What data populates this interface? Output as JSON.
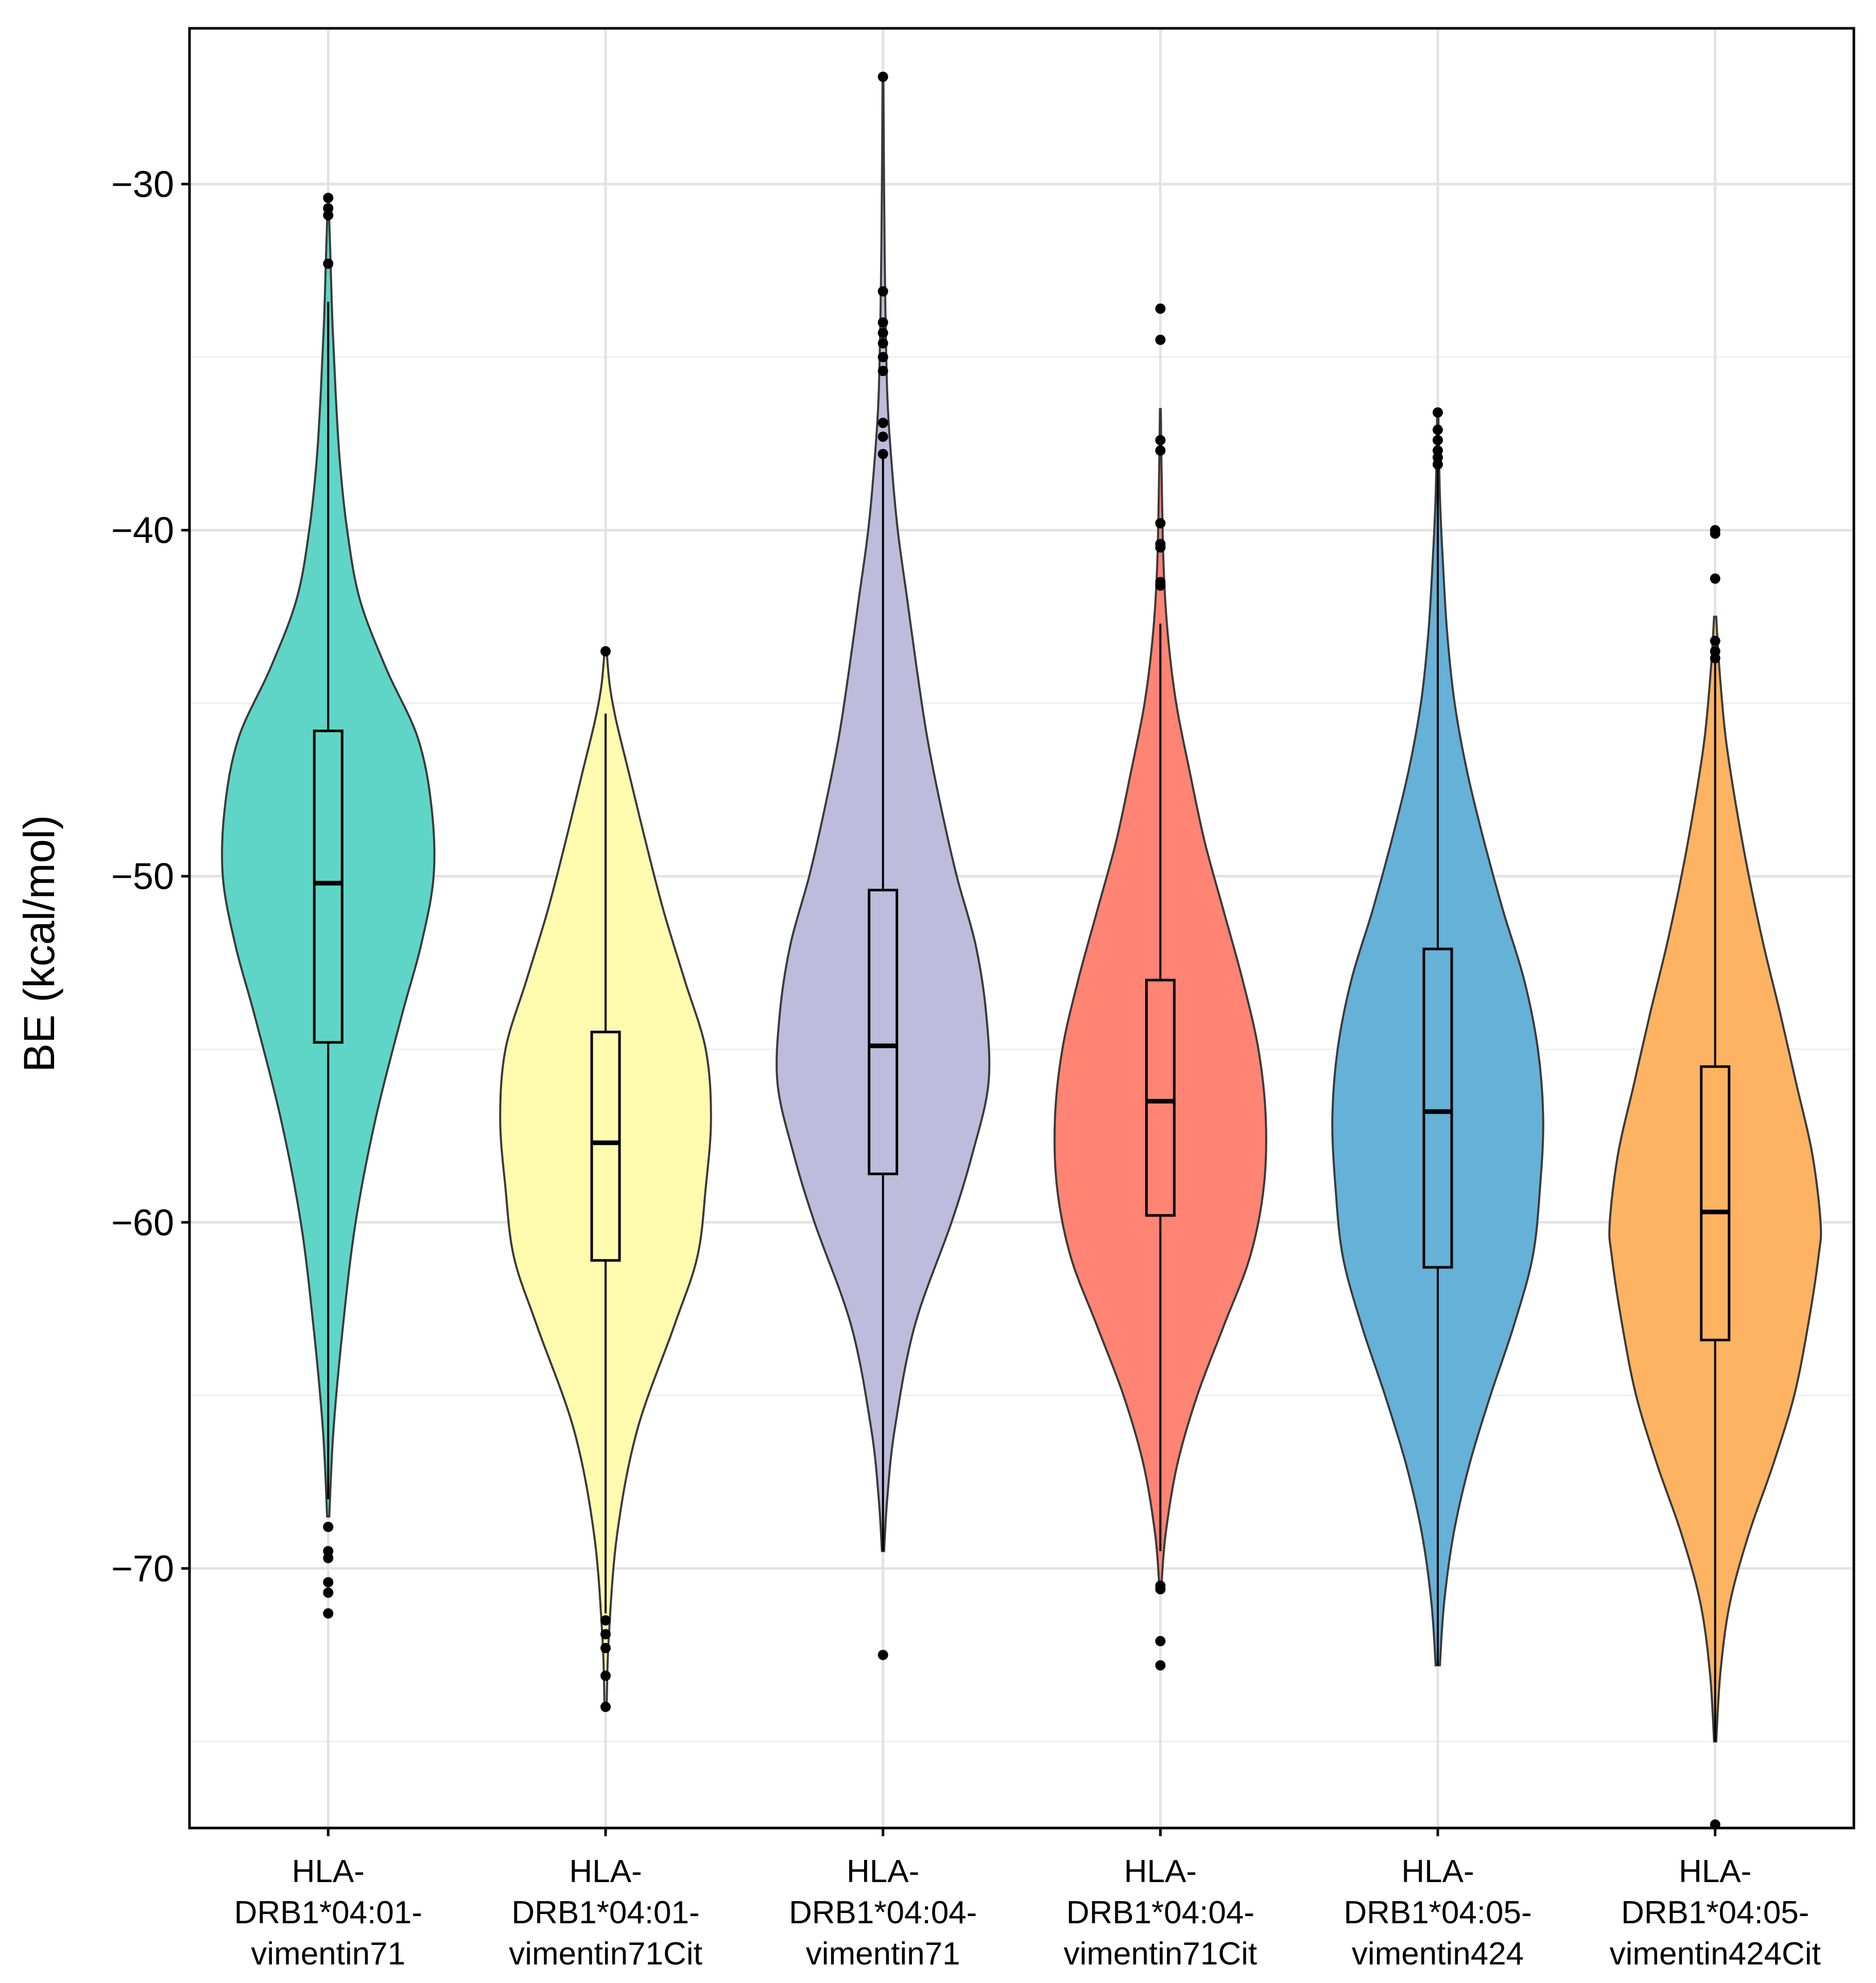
{
  "chart_data": {
    "type": "violin",
    "title": "",
    "xlabel": "",
    "ylabel": "BE (kcal/mol)",
    "ylim": [
      -77.5,
      -25.5
    ],
    "yticks": [
      -30,
      -40,
      -50,
      -60,
      -70
    ],
    "ytick_labels": [
      "−30",
      "−40",
      "−50",
      "−60",
      "−70"
    ],
    "grid": true,
    "legend": "none",
    "categories": [
      {
        "label_lines": [
          "HLA-",
          "DRB1*04:01-",
          "vimentin71"
        ]
      },
      {
        "label_lines": [
          "HLA-",
          "DRB1*04:01-",
          "vimentin71Cit"
        ]
      },
      {
        "label_lines": [
          "HLA-",
          "DRB1*04:04-",
          "vimentin71"
        ]
      },
      {
        "label_lines": [
          "HLA-",
          "DRB1*04:04-",
          "vimentin71Cit"
        ]
      },
      {
        "label_lines": [
          "HLA-",
          "DRB1*04:05-",
          "vimentin424"
        ]
      },
      {
        "label_lines": [
          "HLA-",
          "DRB1*04:05-",
          "vimentin424Cit"
        ]
      }
    ],
    "series": [
      {
        "name": "HLA-DRB1*04:01-vimentin71",
        "color": "#5FD5C8",
        "violin_min": -68.5,
        "violin_max": -30.6,
        "density": [
          [
            -68.5,
            0.01
          ],
          [
            -66,
            0.05
          ],
          [
            -63,
            0.14
          ],
          [
            -60,
            0.26
          ],
          [
            -57,
            0.45
          ],
          [
            -54,
            0.7
          ],
          [
            -52,
            0.88
          ],
          [
            -50,
            1.0
          ],
          [
            -48,
            0.98
          ],
          [
            -46,
            0.85
          ],
          [
            -44,
            0.55
          ],
          [
            -42,
            0.3
          ],
          [
            -40,
            0.18
          ],
          [
            -38,
            0.11
          ],
          [
            -36,
            0.07
          ],
          [
            -34,
            0.04
          ],
          [
            -32,
            0.02
          ],
          [
            -30.6,
            0.005
          ]
        ],
        "q1": -54.8,
        "median": -50.2,
        "q3": -45.8,
        "whisker_low": -68.0,
        "whisker_high": -33.4,
        "outliers": [
          -30.4,
          -30.7,
          -30.9,
          -32.3,
          -68.8,
          -69.5,
          -69.7,
          -70.4,
          -70.7,
          -71.3
        ]
      },
      {
        "name": "HLA-DRB1*04:01-vimentin71Cit",
        "color": "#FFFBAE",
        "violin_min": -74.0,
        "violin_max": -43.5,
        "density": [
          [
            -74,
            0.01
          ],
          [
            -72,
            0.03
          ],
          [
            -69,
            0.11
          ],
          [
            -66,
            0.3
          ],
          [
            -63,
            0.65
          ],
          [
            -61,
            0.87
          ],
          [
            -59,
            0.95
          ],
          [
            -57,
            1.0
          ],
          [
            -55,
            0.95
          ],
          [
            -53,
            0.75
          ],
          [
            -51,
            0.55
          ],
          [
            -49,
            0.38
          ],
          [
            -47,
            0.22
          ],
          [
            -45.5,
            0.1
          ],
          [
            -44.5,
            0.04
          ],
          [
            -43.5,
            0.01
          ]
        ],
        "q1": -61.1,
        "median": -57.7,
        "q3": -54.5,
        "whisker_low": -71.3,
        "whisker_high": -45.3,
        "outliers": [
          -43.5,
          -71.5,
          -71.9,
          -72.3,
          -73.1,
          -74.0
        ]
      },
      {
        "name": "HLA-DRB1*04:04-vimentin71",
        "color": "#BFBBDC",
        "violin_min": -69.5,
        "violin_max": -26.9,
        "density": [
          [
            -69.5,
            0.01
          ],
          [
            -68,
            0.04
          ],
          [
            -66,
            0.11
          ],
          [
            -63,
            0.3
          ],
          [
            -60,
            0.65
          ],
          [
            -58,
            0.85
          ],
          [
            -56,
            1.0
          ],
          [
            -54,
            0.98
          ],
          [
            -52,
            0.88
          ],
          [
            -50,
            0.7
          ],
          [
            -48,
            0.55
          ],
          [
            -46,
            0.42
          ],
          [
            -44,
            0.32
          ],
          [
            -42,
            0.23
          ],
          [
            -40,
            0.14
          ],
          [
            -38,
            0.08
          ],
          [
            -36,
            0.04
          ],
          [
            -33,
            0.02
          ],
          [
            -30,
            0.01
          ],
          [
            -26.9,
            0.004
          ]
        ],
        "q1": -58.6,
        "median": -54.9,
        "q3": -50.4,
        "whisker_low": -69.5,
        "whisker_high": -37.8,
        "outliers": [
          -26.9,
          -33.1,
          -34.0,
          -34.3,
          -34.6,
          -35.0,
          -35.4,
          -36.9,
          -37.3,
          -37.8,
          -72.5
        ]
      },
      {
        "name": "HLA-DRB1*04:04-vimentin71Cit",
        "color": "#FF8474",
        "violin_min": -70.5,
        "violin_max": -36.5,
        "density": [
          [
            -70.5,
            0.01
          ],
          [
            -69,
            0.05
          ],
          [
            -67,
            0.16
          ],
          [
            -65,
            0.35
          ],
          [
            -63,
            0.6
          ],
          [
            -61,
            0.85
          ],
          [
            -59,
            0.98
          ],
          [
            -57,
            1.0
          ],
          [
            -55,
            0.93
          ],
          [
            -53,
            0.78
          ],
          [
            -51,
            0.6
          ],
          [
            -49,
            0.42
          ],
          [
            -47,
            0.28
          ],
          [
            -45,
            0.15
          ],
          [
            -43,
            0.07
          ],
          [
            -41,
            0.03
          ],
          [
            -38,
            0.01
          ],
          [
            -36.5,
            0.004
          ]
        ],
        "q1": -59.8,
        "median": -56.5,
        "q3": -53.0,
        "whisker_low": -69.5,
        "whisker_high": -42.7,
        "outliers": [
          -33.6,
          -34.5,
          -37.4,
          -37.7,
          -39.8,
          -40.4,
          -40.5,
          -41.5,
          -41.6,
          -70.5,
          -70.6,
          -72.1,
          -72.8
        ]
      },
      {
        "name": "HLA-DRB1*04:05-vimentin424",
        "color": "#66B1D8",
        "violin_min": -72.8,
        "violin_max": -36.5,
        "density": [
          [
            -72.8,
            0.02
          ],
          [
            -71,
            0.06
          ],
          [
            -69,
            0.15
          ],
          [
            -67,
            0.3
          ],
          [
            -65,
            0.5
          ],
          [
            -63,
            0.72
          ],
          [
            -61,
            0.9
          ],
          [
            -59,
            0.97
          ],
          [
            -57,
            1.0
          ],
          [
            -55,
            0.95
          ],
          [
            -53,
            0.82
          ],
          [
            -51,
            0.62
          ],
          [
            -49,
            0.44
          ],
          [
            -47,
            0.28
          ],
          [
            -45,
            0.16
          ],
          [
            -43,
            0.09
          ],
          [
            -41,
            0.05
          ],
          [
            -39,
            0.02
          ],
          [
            -36.5,
            0.005
          ]
        ],
        "q1": -61.3,
        "median": -56.8,
        "q3": -52.1,
        "whisker_low": -72.8,
        "whisker_high": -38.1,
        "outliers": [
          -36.6,
          -37.1,
          -37.4,
          -37.7,
          -37.9,
          -38.1
        ]
      },
      {
        "name": "HLA-DRB1*04:05-vimentin424Cit",
        "color": "#FDB361",
        "violin_min": -75.0,
        "violin_max": -42.5,
        "density": [
          [
            -75,
            0.01
          ],
          [
            -73,
            0.05
          ],
          [
            -71,
            0.14
          ],
          [
            -69,
            0.32
          ],
          [
            -67,
            0.55
          ],
          [
            -65,
            0.75
          ],
          [
            -63,
            0.88
          ],
          [
            -61,
            0.98
          ],
          [
            -60,
            1.0
          ],
          [
            -58,
            0.92
          ],
          [
            -56,
            0.77
          ],
          [
            -54,
            0.62
          ],
          [
            -52,
            0.46
          ],
          [
            -50,
            0.32
          ],
          [
            -48,
            0.2
          ],
          [
            -46,
            0.1
          ],
          [
            -44,
            0.04
          ],
          [
            -42.5,
            0.01
          ]
        ],
        "q1": -63.4,
        "median": -59.7,
        "q3": -55.5,
        "whisker_low": -75.0,
        "whisker_high": -43.8,
        "outliers": [
          -40.0,
          -40.1,
          -41.4,
          -43.2,
          -43.5,
          -43.7,
          -77.4
        ]
      }
    ]
  }
}
